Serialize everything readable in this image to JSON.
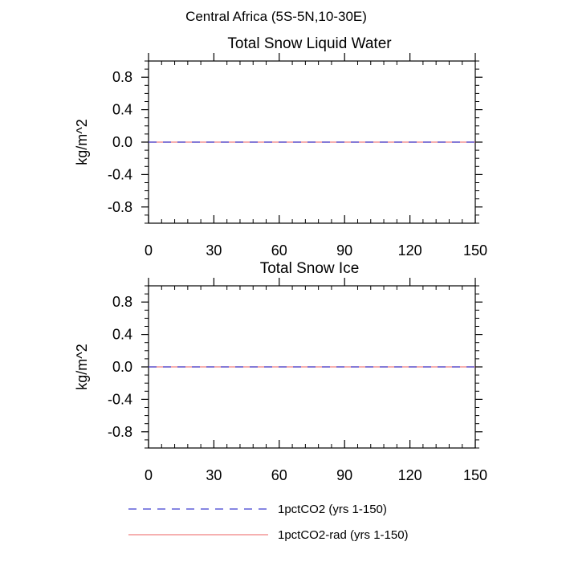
{
  "figure": {
    "title": "Central Africa (5S-5N,10-30E)"
  },
  "chart_data": [
    {
      "type": "line",
      "title": "Total Snow Liquid Water",
      "xlabel": "",
      "ylabel": "kg/m^2",
      "xlim": [
        0,
        150
      ],
      "ylim": [
        -1,
        1
      ],
      "xticks": [
        0,
        30,
        60,
        90,
        120,
        150
      ],
      "xtick_labels": [
        "0",
        "30",
        "60",
        "90",
        "120",
        "150"
      ],
      "yticks": [
        0.8,
        0.4,
        0.0,
        -0.4,
        -0.8
      ],
      "ytick_labels": [
        "0.8",
        "0.4",
        "0.0",
        "-0.4",
        "-0.8"
      ],
      "grid": false,
      "series": [
        {
          "name": "1pctCO2 (yrs 1-150)",
          "color": "#3f3fd0",
          "dash": "dashed",
          "x": [
            0,
            150
          ],
          "y": [
            0,
            0
          ]
        },
        {
          "name": "1pctCO2-rad (yrs 1-150)",
          "color": "#f08080",
          "dash": "solid",
          "x": [
            0,
            150
          ],
          "y": [
            0,
            0
          ]
        }
      ]
    },
    {
      "type": "line",
      "title": "Total Snow Ice",
      "xlabel": "",
      "ylabel": "kg/m^2",
      "xlim": [
        0,
        150
      ],
      "ylim": [
        -1,
        1
      ],
      "xticks": [
        0,
        30,
        60,
        90,
        120,
        150
      ],
      "xtick_labels": [
        "0",
        "30",
        "60",
        "90",
        "120",
        "150"
      ],
      "yticks": [
        0.8,
        0.4,
        0.0,
        -0.4,
        -0.8
      ],
      "ytick_labels": [
        "0.8",
        "0.4",
        "0.0",
        "-0.4",
        "-0.8"
      ],
      "grid": false,
      "series": [
        {
          "name": "1pctCO2 (yrs 1-150)",
          "color": "#3f3fd0",
          "dash": "dashed",
          "x": [
            0,
            150
          ],
          "y": [
            0,
            0
          ]
        },
        {
          "name": "1pctCO2-rad (yrs 1-150)",
          "color": "#f08080",
          "dash": "solid",
          "x": [
            0,
            150
          ],
          "y": [
            0,
            0
          ]
        }
      ]
    }
  ],
  "legend": {
    "placement": "bottom",
    "items": [
      {
        "label": "1pctCO2 (yrs 1-150)",
        "color": "#3f3fd0",
        "dash": "dashed"
      },
      {
        "label": "1pctCO2-rad (yrs 1-150)",
        "color": "#f08080",
        "dash": "solid"
      }
    ]
  }
}
